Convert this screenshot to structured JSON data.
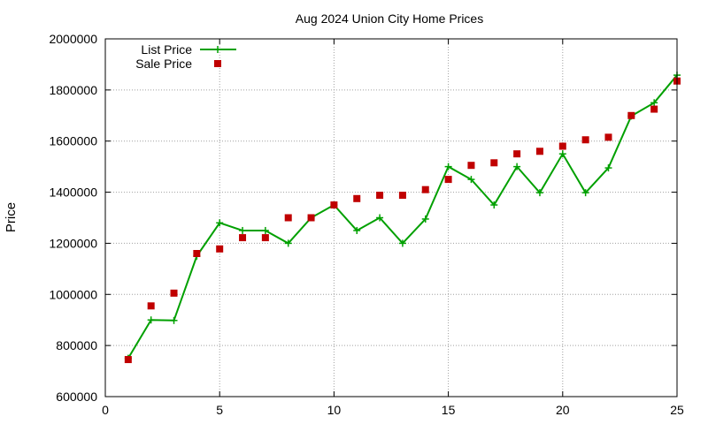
{
  "chart_data": {
    "type": "line",
    "title": "Aug 2024 Union City Home Prices",
    "xlabel": "",
    "ylabel": "Price",
    "xlim": [
      0,
      25
    ],
    "ylim": [
      600000,
      2000000
    ],
    "x_ticks": [
      "0",
      "5",
      "10",
      "15",
      "20",
      "25"
    ],
    "y_ticks": [
      "600000",
      "800000",
      "1000000",
      "1200000",
      "1400000",
      "1600000",
      "1800000",
      "2000000"
    ],
    "grid": true,
    "legend_position": "top-left",
    "series": [
      {
        "name": "List Price",
        "style": "line-with-plus-markers",
        "color": "#00a000",
        "x": [
          1,
          2,
          3,
          4,
          5,
          6,
          7,
          8,
          9,
          10,
          11,
          12,
          13,
          14,
          15,
          16,
          17,
          18,
          19,
          20,
          21,
          22,
          23,
          24,
          25
        ],
        "values": [
          750000,
          900000,
          898000,
          1150000,
          1280000,
          1250000,
          1250000,
          1200000,
          1300000,
          1350000,
          1250000,
          1300000,
          1200000,
          1295000,
          1500000,
          1450000,
          1350000,
          1500000,
          1398000,
          1550000,
          1398000,
          1495000,
          1698000,
          1750000,
          1858000
        ]
      },
      {
        "name": "Sale Price",
        "style": "square-markers",
        "color": "#c00000",
        "x": [
          1,
          2,
          3,
          4,
          5,
          6,
          7,
          8,
          9,
          10,
          11,
          12,
          13,
          14,
          15,
          16,
          17,
          18,
          19,
          20,
          21,
          22,
          23,
          24,
          25
        ],
        "values": [
          745000,
          955000,
          1005000,
          1160000,
          1178000,
          1222000,
          1222000,
          1300000,
          1300000,
          1350000,
          1375000,
          1388000,
          1388000,
          1410000,
          1450000,
          1505000,
          1515000,
          1550000,
          1560000,
          1580000,
          1605000,
          1615000,
          1700000,
          1725000,
          1835000
        ]
      }
    ]
  }
}
